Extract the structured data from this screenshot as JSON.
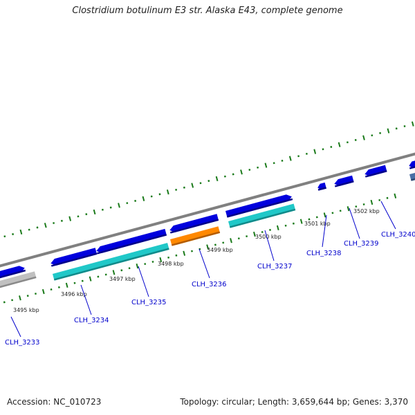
{
  "title": "Clostridium botulinum E3 str. Alaska E43, complete genome",
  "accession": "Accession: NC_010723",
  "topology": "Topology: circular; Length: 3,659,644 bp; Genes: 3,370",
  "colors": {
    "backbone": "#808080",
    "cds": "#0000dd",
    "cds_edge": "#000088",
    "rrna": "#20c8c8",
    "rrna_edge": "#128a8a",
    "trna": "#ff8800",
    "trna_edge": "#b35c00",
    "misc": "#c0c0c0",
    "misc_edge": "#8a8a8a",
    "steelblue": "#4a6fa5",
    "tick": "#1a7a1a",
    "gene_label": "#0000cc"
  },
  "ticks": {
    "labels": [
      "3495 kbp",
      "3496 kbp",
      "3497 kbp",
      "3498 kbp",
      "3499 kbp",
      "3500 kbp",
      "3501 kbp",
      "3502 kbp"
    ]
  },
  "genes": {
    "labels": [
      "CLH_3233",
      "CLH_3234",
      "CLH_3235",
      "CLH_3236",
      "CLH_3237",
      "CLH_3238",
      "CLH_3239",
      "CLH_3240"
    ]
  }
}
